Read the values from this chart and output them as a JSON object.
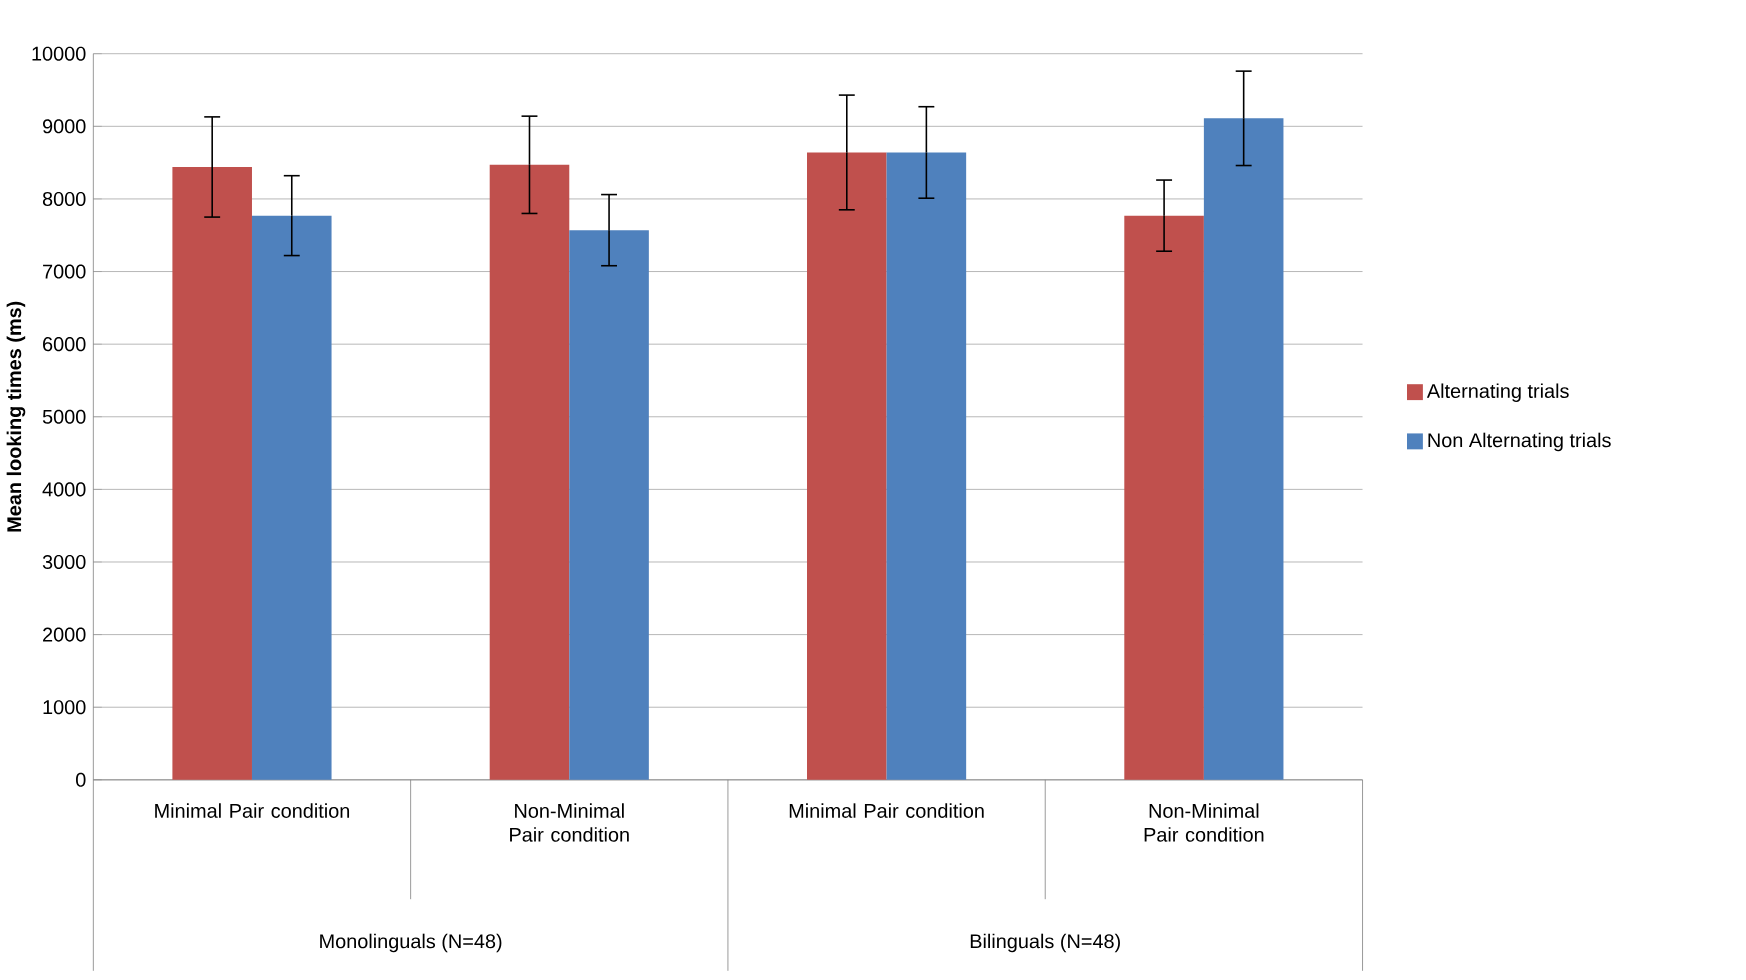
{
  "chart_data": {
    "type": "bar",
    "ylabel": "Mean looking times (ms)",
    "categories": [
      "Minimal Pair condition",
      "Non-Minimal Pair condition",
      "Minimal Pair condition",
      "Non-Minimal Pair condition"
    ],
    "series": [
      {
        "name": "Alternating trials",
        "color": "#c0504d",
        "values": [
          8440,
          8470,
          8640,
          7770
        ],
        "errors": [
          690,
          670,
          790,
          490
        ]
      },
      {
        "name": "Non Alternating trials",
        "color": "#4f81bd",
        "values": [
          7770,
          7570,
          8640,
          9110
        ],
        "errors": [
          550,
          490,
          630,
          650
        ]
      }
    ],
    "annotations": [
      "Monolinguals (N=48)",
      "Bilinguals (N=48)"
    ],
    "ylim": [
      0,
      10000
    ],
    "yticks": [
      0,
      1000,
      2000,
      3000,
      4000,
      5000,
      6000,
      7000,
      8000,
      9000,
      10000
    ],
    "grid": "y",
    "legend": "right"
  }
}
